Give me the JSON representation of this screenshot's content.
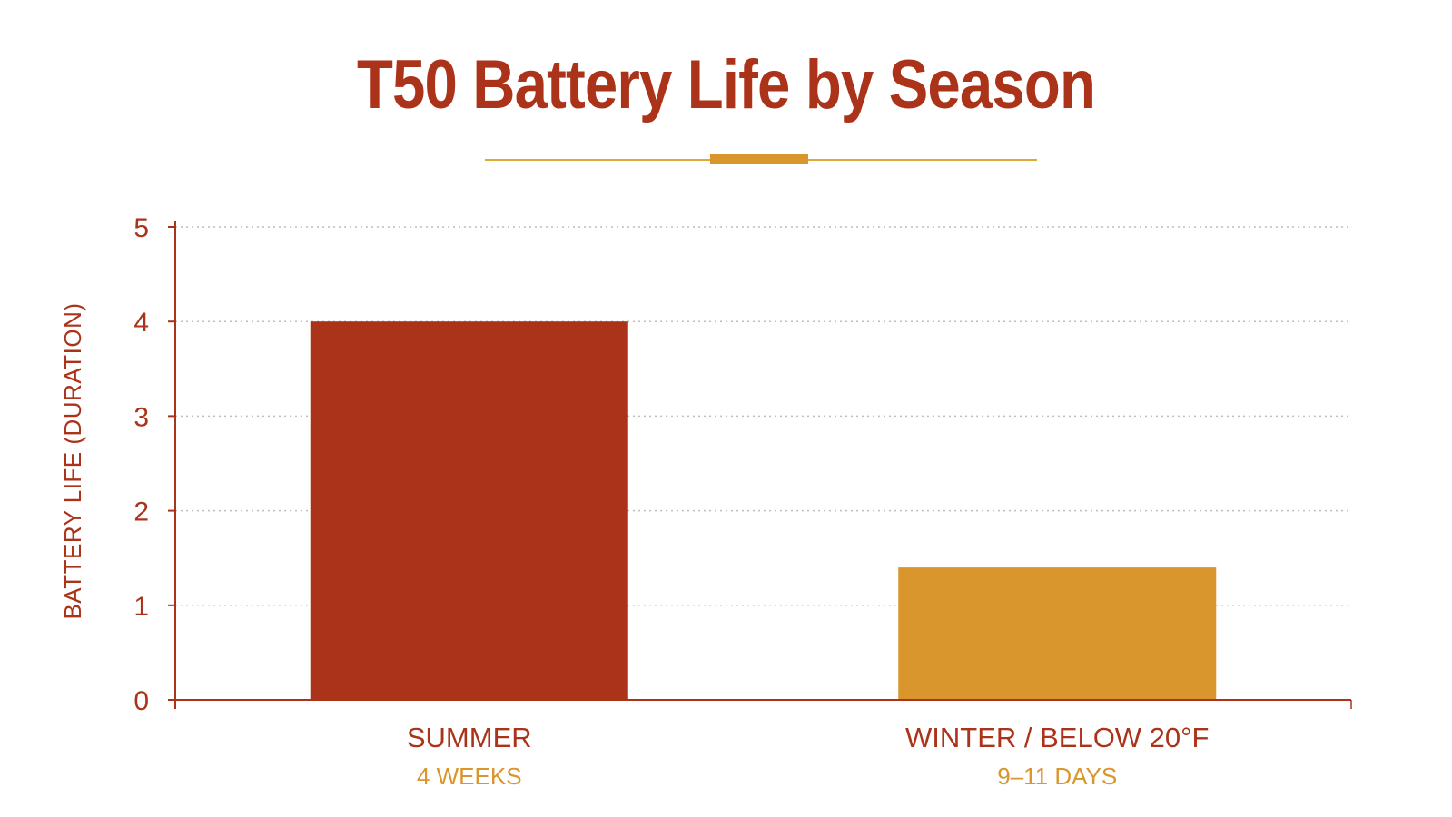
{
  "chart_data": {
    "type": "bar",
    "title": "T50 Battery Life by Season",
    "ylabel": "BATTERY LIFE (DURATION)",
    "xlabel": "",
    "ylim": [
      0,
      5
    ],
    "yticks": [
      "0",
      "1",
      "2",
      "3",
      "4",
      "5"
    ],
    "categories": [
      "SUMMER",
      "WINTER / BELOW 20°F"
    ],
    "sublabels": [
      "4 WEEKS",
      "9–11 DAYS"
    ],
    "values": [
      4,
      1.4
    ],
    "bar_colors": [
      "#aa331a",
      "#d9962c"
    ],
    "grid": true,
    "grid_style": "dotted",
    "legend": "none"
  },
  "colors": {
    "title": "#aa331a",
    "accent": "#d9962c",
    "rule": "#dcaa35",
    "axis": "#aa331a",
    "grid": "#c7b9b4"
  }
}
